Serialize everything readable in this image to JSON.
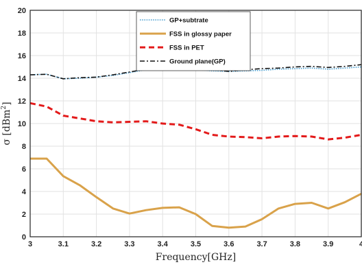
{
  "chart_data": {
    "type": "line",
    "xlabel": "Frequency[GHz]",
    "ylabel_main": "σ [dBm",
    "ylabel_sup": "2",
    "ylabel_close": "]",
    "xlim": [
      3,
      4
    ],
    "ylim": [
      0,
      20
    ],
    "grid": true,
    "legend_position": "top-right",
    "x_ticks": [
      "3",
      "3.1",
      "3.2",
      "3.3",
      "3.4",
      "3.5",
      "3.6",
      "3.7",
      "3.8",
      "3.9",
      "4"
    ],
    "y_ticks": [
      "0",
      "2",
      "4",
      "6",
      "8",
      "10",
      "12",
      "14",
      "16",
      "18",
      "20"
    ],
    "x": [
      3.0,
      3.05,
      3.1,
      3.15,
      3.2,
      3.25,
      3.3,
      3.35,
      3.4,
      3.45,
      3.5,
      3.55,
      3.6,
      3.65,
      3.7,
      3.75,
      3.8,
      3.85,
      3.9,
      3.95,
      4.0
    ],
    "series": [
      {
        "name": "GP+subtrate",
        "color": "#4a9fd0",
        "style": "dotted",
        "values": [
          14.3,
          14.35,
          13.95,
          14.0,
          14.1,
          14.25,
          14.5,
          14.75,
          14.8,
          14.8,
          14.75,
          14.65,
          14.6,
          14.65,
          14.7,
          14.8,
          14.85,
          14.9,
          14.8,
          14.9,
          15.0
        ]
      },
      {
        "name": "FSS in glossy paper",
        "color": "#d9a24a",
        "style": "solid",
        "values": [
          6.9,
          6.9,
          5.35,
          4.55,
          3.5,
          2.5,
          2.05,
          2.35,
          2.55,
          2.6,
          2.0,
          0.95,
          0.8,
          0.9,
          1.55,
          2.5,
          2.9,
          3.0,
          2.5,
          3.05,
          3.8
        ]
      },
      {
        "name": "FSS in PET",
        "color": "#e31a1a",
        "style": "dashed",
        "values": [
          11.8,
          11.5,
          10.7,
          10.45,
          10.2,
          10.1,
          10.15,
          10.2,
          10.0,
          9.9,
          9.5,
          9.0,
          8.85,
          8.8,
          8.7,
          8.85,
          8.9,
          8.85,
          8.6,
          8.75,
          9.0
        ]
      },
      {
        "name": "Ground plane(GP)",
        "color": "#111111",
        "style": "dashdot",
        "values": [
          14.3,
          14.35,
          13.95,
          14.05,
          14.1,
          14.3,
          14.55,
          14.8,
          14.85,
          14.9,
          14.85,
          14.75,
          14.6,
          14.75,
          14.85,
          14.9,
          15.0,
          15.05,
          14.95,
          15.05,
          15.2
        ]
      }
    ]
  }
}
